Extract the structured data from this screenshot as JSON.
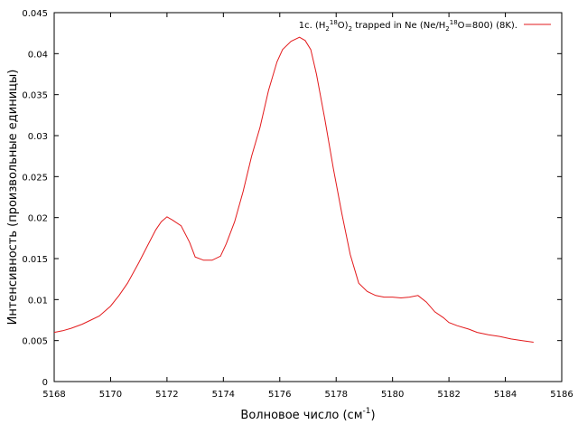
{
  "chart_data": {
    "type": "line",
    "xlabel": "Волновое число (см",
    "xlabel_sup": "-1",
    "xlabel_suffix": ")",
    "ylabel": "Интенсивность (произвольные единицы)",
    "xlim": [
      5168,
      5186
    ],
    "ylim": [
      0,
      0.045
    ],
    "x_ticks": [
      "5168",
      "5170",
      "5172",
      "5174",
      "5176",
      "5178",
      "5180",
      "5182",
      "5184",
      "5186"
    ],
    "y_ticks": [
      "0",
      "0.005",
      "0.01",
      "0.015",
      "0.02",
      "0.025",
      "0.03",
      "0.035",
      "0.04",
      "0.045"
    ],
    "grid": false,
    "legend_position": "top-right",
    "series": [
      {
        "name": "1c. (H218O)2 trapped in Ne (Ne/H218O=800) (8K).",
        "color": "#e31a1c",
        "x": [
          5168.0,
          5168.3,
          5168.6,
          5169.0,
          5169.3,
          5169.6,
          5170.0,
          5170.3,
          5170.6,
          5171.0,
          5171.3,
          5171.6,
          5171.8,
          5172.0,
          5172.2,
          5172.5,
          5172.8,
          5173.0,
          5173.3,
          5173.6,
          5173.9,
          5174.1,
          5174.4,
          5174.7,
          5175.0,
          5175.3,
          5175.6,
          5175.9,
          5176.1,
          5176.4,
          5176.7,
          5176.9,
          5177.1,
          5177.3,
          5177.6,
          5177.9,
          5178.2,
          5178.5,
          5178.8,
          5179.1,
          5179.4,
          5179.7,
          5180.0,
          5180.3,
          5180.6,
          5180.9,
          5181.2,
          5181.5,
          5181.8,
          5182.0,
          5182.3,
          5182.7,
          5183.0,
          5183.4,
          5183.8,
          5184.2,
          5184.6,
          5185.0
        ],
        "y": [
          0.006,
          0.0062,
          0.0065,
          0.007,
          0.0075,
          0.008,
          0.0092,
          0.0105,
          0.012,
          0.0145,
          0.0165,
          0.0185,
          0.0195,
          0.0201,
          0.0197,
          0.019,
          0.017,
          0.0152,
          0.0148,
          0.0148,
          0.0153,
          0.0168,
          0.0195,
          0.0232,
          0.0275,
          0.031,
          0.0355,
          0.039,
          0.0405,
          0.0415,
          0.042,
          0.0416,
          0.0405,
          0.0375,
          0.032,
          0.026,
          0.0205,
          0.0155,
          0.012,
          0.011,
          0.0105,
          0.0103,
          0.0103,
          0.0102,
          0.0103,
          0.0105,
          0.0097,
          0.0085,
          0.0078,
          0.0072,
          0.0068,
          0.0064,
          0.006,
          0.0057,
          0.0055,
          0.0052,
          0.005,
          0.0048
        ]
      }
    ]
  },
  "legend": {
    "prefix": "1c. (H",
    "sub1": "2",
    "sup1": "18",
    "mid1": "O)",
    "sub2": "2",
    "mid2": " trapped in Ne (Ne/H",
    "sub3": "2",
    "sup2": "18",
    "suffix": "O=800) (8K)."
  }
}
